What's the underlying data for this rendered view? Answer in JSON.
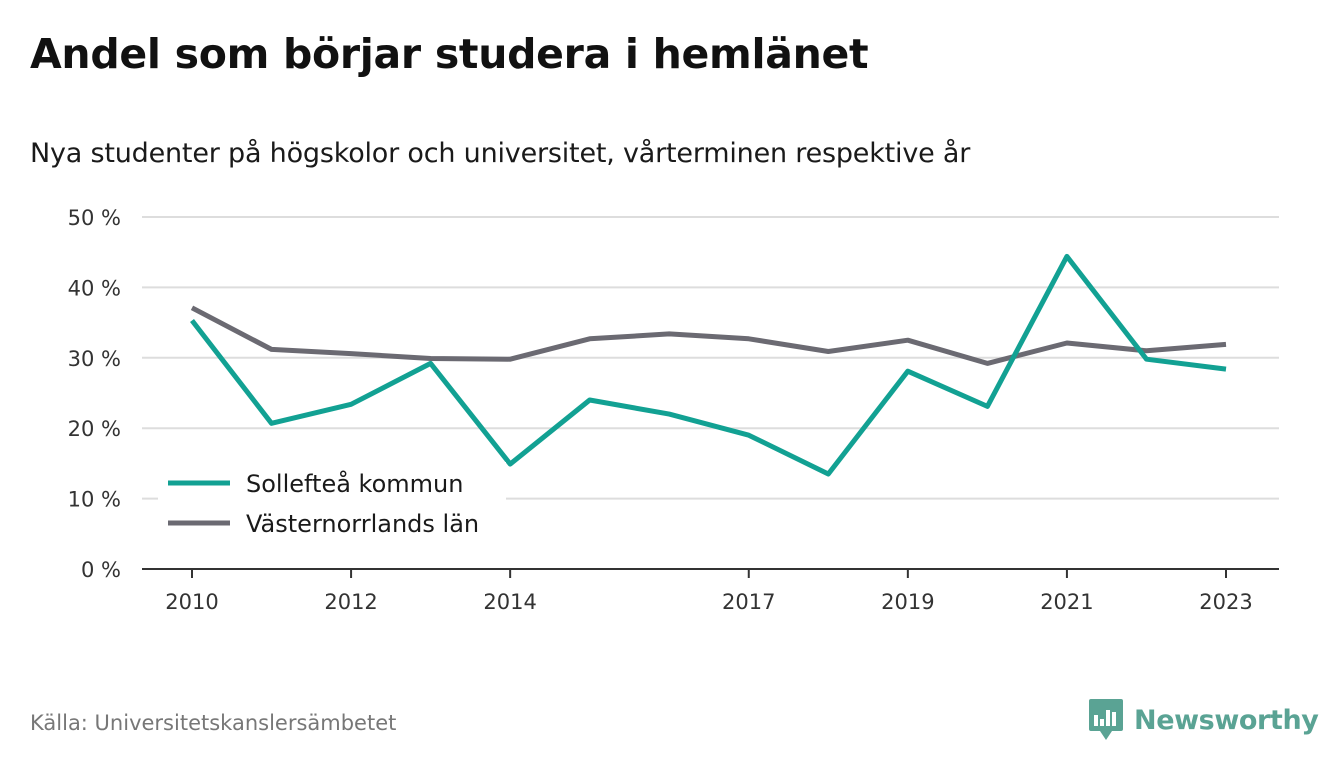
{
  "title": "Andel som börjar studera i hemlänet",
  "subtitle": "Nya studenter på högskolor och universitet, vårterminen respektive år",
  "source": "Källa: Universitetskanslersämbetet",
  "brand": {
    "name": "Newsworthy",
    "icon": "newsworthy-logo-icon",
    "color": "#5aa394"
  },
  "chart_data": {
    "type": "line",
    "x": [
      2010,
      2011,
      2012,
      2013,
      2014,
      2015,
      2016,
      2017,
      2018,
      2019,
      2020,
      2021,
      2022,
      2023
    ],
    "x_tick_labels": [
      "2010",
      "2012",
      "2014",
      "2017",
      "2019",
      "2021",
      "2023"
    ],
    "y_tick_labels": [
      "0 %",
      "10 %",
      "20 %",
      "30 %",
      "40 %",
      "50 %"
    ],
    "ylim": [
      0,
      50
    ],
    "grid": true,
    "legend_position": "bottom-left",
    "series": [
      {
        "name": "Sollefteå kommun",
        "color": "#12a193",
        "values": [
          35.3,
          20.7,
          23.4,
          29.2,
          14.9,
          24.0,
          22.0,
          19.0,
          13.5,
          28.1,
          23.1,
          44.4,
          29.8,
          28.4
        ]
      },
      {
        "name": "Västernorrlands län",
        "color": "#6b6a72",
        "values": [
          37.1,
          31.2,
          30.6,
          29.9,
          29.8,
          32.7,
          33.4,
          32.7,
          30.9,
          32.5,
          29.2,
          32.1,
          31.0,
          31.9
        ]
      }
    ]
  }
}
